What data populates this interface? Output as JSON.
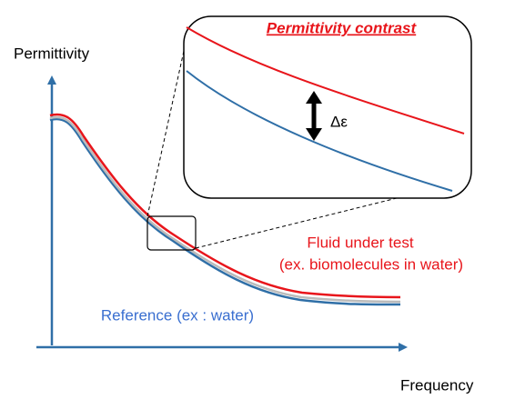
{
  "axes": {
    "y_label": "Permittivity",
    "x_label": "Frequency"
  },
  "inset": {
    "title": "Permittivity contrast",
    "delta_label": "Δε"
  },
  "labels": {
    "fluid": "Fluid under test",
    "fluid_example": "(ex. biomolecules in water)",
    "reference": "Reference (ex : water)"
  }
}
